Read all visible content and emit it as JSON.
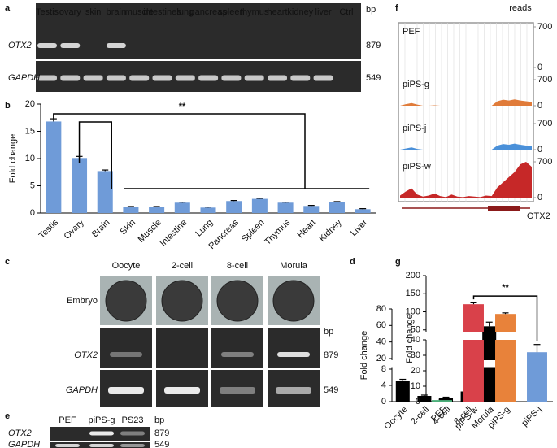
{
  "panel_labels": [
    "a",
    "b",
    "c",
    "d",
    "e",
    "f",
    "g"
  ],
  "gel_a": {
    "lanes": [
      "Testis",
      "ovary",
      "skin",
      "brain",
      "muscle",
      "intestines",
      "lung",
      "pancreas",
      "spleen",
      "thymus",
      "heart",
      "kidney",
      "liver",
      "Ctrl"
    ],
    "unit": "bp",
    "rows": [
      {
        "gene": "OTX2",
        "size": "879"
      },
      {
        "gene": "GAPDH",
        "size": "549"
      }
    ]
  },
  "gel_c": {
    "columns": [
      "Oocyte",
      "2-cell",
      "8-cell",
      "Morula"
    ],
    "rows": [
      "Embryo",
      "OTX2",
      "GAPDH"
    ],
    "unit": "bp",
    "sizes": [
      "879",
      "549"
    ]
  },
  "gel_e": {
    "lanes": [
      "PEF",
      "piPS-g",
      "PS23"
    ],
    "unit": "bp",
    "rows": [
      {
        "gene": "OTX2",
        "size": "879"
      },
      {
        "gene": "GAPDH",
        "size": "549"
      }
    ]
  },
  "chart_data": [
    {
      "type": "bar",
      "ylabel": "Fold change",
      "annotation": "**",
      "categories": [
        "Testis",
        "Ovary",
        "Brain",
        "Skin",
        "Muscle",
        "Intestine",
        "Lung",
        "Pancreas",
        "Spleen",
        "Thymus",
        "Heart",
        "Kidney",
        "Liver"
      ],
      "values": [
        16.8,
        10.1,
        7.7,
        1.1,
        1.1,
        1.9,
        1.0,
        2.2,
        2.6,
        1.9,
        1.3,
        2.0,
        0.7
      ],
      "errors": [
        0.5,
        0.3,
        0.2,
        0.1,
        0.1,
        0.1,
        0.1,
        0.1,
        0.1,
        0.1,
        0.1,
        0.1,
        0.1
      ],
      "color": "#6f9bd8",
      "ylim": [
        0,
        20
      ],
      "yticks": [
        0,
        5,
        10,
        15,
        20
      ]
    },
    {
      "type": "broken_bar",
      "ylabel": "Fold change",
      "categories": [
        "Oocyte",
        "2-cell",
        "4-cell",
        "8-cell",
        "Morula"
      ],
      "values": [
        5.0,
        1.4,
        1.0,
        2.5,
        59
      ],
      "errors": [
        0.5,
        0.2,
        0.1,
        0.4,
        5
      ],
      "color": "#000000",
      "ylim_lower": [
        0,
        8.5
      ],
      "yticks_lower": [
        0,
        4,
        8
      ],
      "ylim_upper": [
        18,
        80
      ],
      "yticks_upper": [
        20,
        40,
        60,
        80
      ]
    },
    {
      "type": "broken_bar",
      "ylabel": "Fold change",
      "annotation": "**",
      "categories": [
        "PEF",
        "piPS-w",
        "piPS-g",
        "piPS-j"
      ],
      "values": [
        1,
        121,
        94,
        32
      ],
      "errors": [
        0.5,
        4,
        3,
        5
      ],
      "colors": [
        "#4caf7a",
        "#d9414a",
        "#e8823a",
        "#6f9bd8"
      ],
      "ylim_lower": [
        0,
        40
      ],
      "yticks_lower": [
        0,
        10,
        20,
        30,
        40
      ],
      "ylim_upper": [
        45,
        200
      ],
      "yticks_upper": [
        50,
        100,
        150,
        200
      ]
    },
    {
      "type": "track",
      "ylabel": "reads",
      "xlabel": "OTX2",
      "ylim": [
        0,
        700
      ],
      "yticks": [
        0,
        700
      ],
      "series": [
        {
          "name": "PEF",
          "color": "#999999",
          "values": [
            0,
            0,
            0,
            0,
            0,
            0,
            0,
            0,
            0,
            0,
            0,
            0,
            0,
            0,
            0,
            0,
            0,
            0,
            0,
            0,
            0,
            0,
            0,
            0
          ]
        },
        {
          "name": "piPS-g",
          "color": "#e07b39",
          "values": [
            0,
            40,
            70,
            30,
            0,
            0,
            10,
            0,
            0,
            0,
            0,
            0,
            0,
            0,
            0,
            0,
            0,
            120,
            160,
            140,
            170,
            140,
            120,
            100
          ]
        },
        {
          "name": "piPS-j",
          "color": "#4a90d9",
          "values": [
            0,
            30,
            60,
            20,
            0,
            0,
            0,
            0,
            0,
            0,
            0,
            0,
            0,
            0,
            0,
            0,
            0,
            110,
            150,
            130,
            160,
            130,
            110,
            90
          ]
        },
        {
          "name": "piPS-w",
          "color": "#c62828",
          "values": [
            40,
            120,
            180,
            60,
            20,
            40,
            80,
            30,
            10,
            60,
            20,
            10,
            30,
            20,
            10,
            40,
            30,
            200,
            300,
            400,
            500,
            650,
            700,
            600
          ]
        }
      ]
    }
  ]
}
